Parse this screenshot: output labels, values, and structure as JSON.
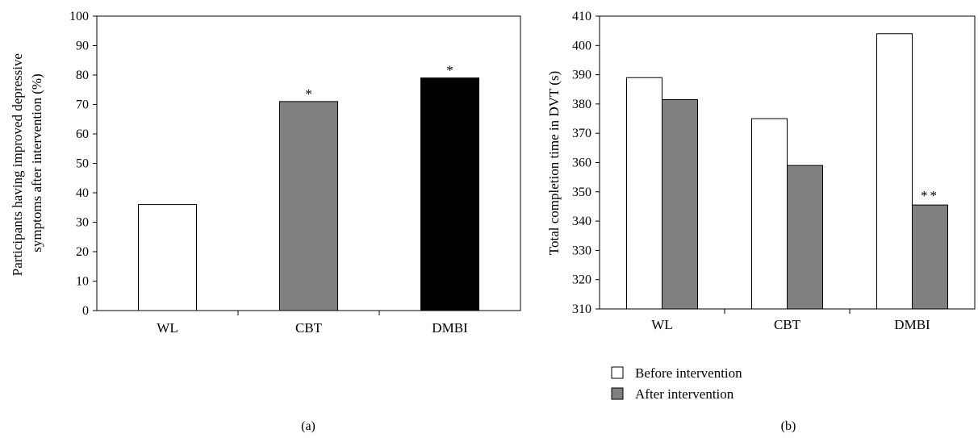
{
  "chart_data": [
    {
      "type": "bar",
      "panel_label": "(a)",
      "categories": [
        "WL",
        "CBT",
        "DMBI"
      ],
      "values": [
        36,
        71,
        79
      ],
      "bar_colors": [
        "#ffffff",
        "#808080",
        "#000000"
      ],
      "annotations": [
        "",
        "*",
        "*"
      ],
      "ylabel_lines": [
        "Participants having improved depressive",
        "symptoms after intervention (%)"
      ],
      "ylim": [
        0,
        100
      ],
      "yticks": [
        0,
        10,
        20,
        30,
        40,
        50,
        60,
        70,
        80,
        90,
        100
      ],
      "grid": false
    },
    {
      "type": "bar",
      "panel_label": "(b)",
      "categories": [
        "WL",
        "CBT",
        "DMBI"
      ],
      "series": [
        {
          "name": "Before intervention",
          "values": [
            389,
            375,
            404
          ],
          "color": "#ffffff"
        },
        {
          "name": "After intervention",
          "values": [
            381.5,
            359,
            345.5
          ],
          "color": "#808080"
        }
      ],
      "annotations": [
        {
          "category": "DMBI",
          "series": "After intervention",
          "text": "**"
        }
      ],
      "ylabel": "Total completion time in DVT (s)",
      "ylim": [
        310,
        410
      ],
      "yticks": [
        310,
        320,
        330,
        340,
        350,
        360,
        370,
        380,
        390,
        400,
        410
      ],
      "legend_position": "bottom",
      "grid": false
    }
  ]
}
